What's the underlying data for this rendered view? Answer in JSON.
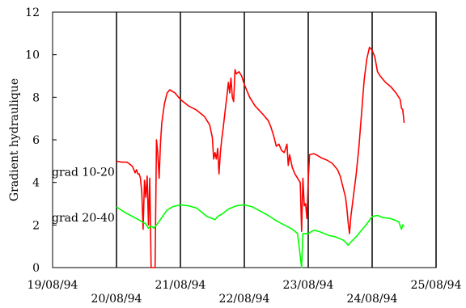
{
  "chart_data": {
    "type": "line",
    "title": "",
    "xlabel": "",
    "ylabel": "Gradient hydraulique",
    "xlim": [
      "19/08/94 00:00",
      "25/08/94 00:00"
    ],
    "ylim": [
      0,
      12
    ],
    "y_ticks": [
      0,
      2,
      4,
      6,
      8,
      10,
      12
    ],
    "x_ticks": [
      {
        "date": "19/08/94",
        "label": "19/08/94",
        "row": "upper"
      },
      {
        "date": "20/08/94",
        "label": "20/08/94",
        "row": "lower"
      },
      {
        "date": "21/08/94",
        "label": "21/08/94",
        "row": "upper"
      },
      {
        "date": "22/08/94",
        "label": "22/08/94",
        "row": "lower"
      },
      {
        "date": "23/08/94",
        "label": "23/08/94",
        "row": "upper"
      },
      {
        "date": "24/08/94",
        "label": "24/08/94",
        "row": "lower"
      },
      {
        "date": "25/08/94",
        "label": "25/08/94",
        "row": "upper"
      }
    ],
    "vertical_lines": [
      "20/08/94 00:00",
      "21/08/94 00:00",
      "22/08/94 00:00",
      "23/08/94 00:00",
      "24/08/94 00:00",
      "25/08/94 00:00"
    ],
    "grid": false,
    "series": [
      {
        "name": "grad 10-20",
        "color": "#ff0000",
        "points": [
          [
            "20/08/94 00:00",
            5.0
          ],
          [
            "20/08/94 02:00",
            4.95
          ],
          [
            "20/08/94 04:00",
            4.95
          ],
          [
            "20/08/94 05:00",
            4.85
          ],
          [
            "20/08/94 06:00",
            4.75
          ],
          [
            "20/08/94 07:00",
            4.45
          ],
          [
            "20/08/94 07:30",
            4.6
          ],
          [
            "20/08/94 08:00",
            4.4
          ],
          [
            "20/08/94 08:30",
            4.4
          ],
          [
            "20/08/94 09:00",
            4.2
          ],
          [
            "20/08/94 09:30",
            3.5
          ],
          [
            "20/08/94 10:00",
            1.8
          ],
          [
            "20/08/94 10:30",
            4.1
          ],
          [
            "20/08/94 11:00",
            3.3
          ],
          [
            "20/08/94 11:30",
            4.3
          ],
          [
            "20/08/94 12:00",
            2.0
          ],
          [
            "20/08/94 12:30",
            4.2
          ],
          [
            "20/08/94 13:00",
            0.0
          ],
          [
            "20/08/94 14:00",
            0.0
          ],
          [
            "20/08/94 14:30",
            0.0
          ],
          [
            "20/08/94 15:00",
            6.0
          ],
          [
            "20/08/94 15:30",
            5.4
          ],
          [
            "20/08/94 16:00",
            4.2
          ],
          [
            "20/08/94 16:30",
            5.8
          ],
          [
            "20/08/94 17:00",
            6.8
          ],
          [
            "20/08/94 18:00",
            7.7
          ],
          [
            "20/08/94 19:00",
            8.2
          ],
          [
            "20/08/94 20:00",
            8.35
          ],
          [
            "20/08/94 22:00",
            8.2
          ],
          [
            "21/08/94 00:00",
            7.9
          ],
          [
            "21/08/94 03:00",
            7.6
          ],
          [
            "21/08/94 06:00",
            7.4
          ],
          [
            "21/08/94 09:00",
            7.1
          ],
          [
            "21/08/94 11:00",
            6.7
          ],
          [
            "21/08/94 12:00",
            6.1
          ],
          [
            "21/08/94 12:30",
            5.1
          ],
          [
            "21/08/94 13:00",
            5.4
          ],
          [
            "21/08/94 13:30",
            5.1
          ],
          [
            "21/08/94 14:00",
            5.6
          ],
          [
            "21/08/94 14:30",
            4.4
          ],
          [
            "21/08/94 15:00",
            5.4
          ],
          [
            "21/08/94 15:30",
            6.0
          ],
          [
            "21/08/94 16:00",
            6.5
          ],
          [
            "21/08/94 17:00",
            7.6
          ],
          [
            "21/08/94 17:30",
            8.1
          ],
          [
            "21/08/94 18:00",
            8.7
          ],
          [
            "21/08/94 18:30",
            8.2
          ],
          [
            "21/08/94 19:00",
            8.9
          ],
          [
            "21/08/94 19:30",
            8.0
          ],
          [
            "21/08/94 20:00",
            7.8
          ],
          [
            "21/08/94 20:30",
            9.3
          ],
          [
            "21/08/94 21:00",
            9.1
          ],
          [
            "21/08/94 22:00",
            9.2
          ],
          [
            "21/08/94 23:00",
            9.0
          ],
          [
            "22/08/94 00:00",
            8.6
          ],
          [
            "22/08/94 02:00",
            8.0
          ],
          [
            "22/08/94 04:00",
            7.6
          ],
          [
            "22/08/94 07:00",
            7.2
          ],
          [
            "22/08/94 09:00",
            6.9
          ],
          [
            "22/08/94 10:00",
            6.6
          ],
          [
            "22/08/94 11:00",
            6.2
          ],
          [
            "22/08/94 12:00",
            5.7
          ],
          [
            "22/08/94 13:00",
            5.8
          ],
          [
            "22/08/94 14:00",
            5.5
          ],
          [
            "22/08/94 15:00",
            5.4
          ],
          [
            "22/08/94 16:00",
            5.8
          ],
          [
            "22/08/94 16:30",
            4.8
          ],
          [
            "22/08/94 17:00",
            5.3
          ],
          [
            "22/08/94 18:00",
            4.7
          ],
          [
            "22/08/94 19:00",
            4.4
          ],
          [
            "22/08/94 20:00",
            4.2
          ],
          [
            "22/08/94 21:00",
            4.0
          ],
          [
            "22/08/94 21:30",
            1.7
          ],
          [
            "22/08/94 22:00",
            4.2
          ],
          [
            "22/08/94 22:30",
            2.9
          ],
          [
            "22/08/94 23:00",
            3.0
          ],
          [
            "22/08/94 23:30",
            2.3
          ],
          [
            "23/08/94 00:00",
            4.1
          ],
          [
            "23/08/94 00:30",
            5.3
          ],
          [
            "23/08/94 02:00",
            5.35
          ],
          [
            "23/08/94 03:00",
            5.3
          ],
          [
            "23/08/94 05:00",
            5.15
          ],
          [
            "23/08/94 07:00",
            5.05
          ],
          [
            "23/08/94 09:00",
            4.9
          ],
          [
            "23/08/94 11:00",
            4.6
          ],
          [
            "23/08/94 12:00",
            4.3
          ],
          [
            "23/08/94 13:00",
            3.8
          ],
          [
            "23/08/94 14:00",
            3.3
          ],
          [
            "23/08/94 14:30",
            2.8
          ],
          [
            "23/08/94 15:00",
            2.1
          ],
          [
            "23/08/94 15:30",
            1.6
          ],
          [
            "23/08/94 16:00",
            2.4
          ],
          [
            "23/08/94 17:00",
            3.4
          ],
          [
            "23/08/94 18:00",
            4.4
          ],
          [
            "23/08/94 19:00",
            5.6
          ],
          [
            "23/08/94 20:00",
            7.2
          ],
          [
            "23/08/94 21:00",
            8.8
          ],
          [
            "23/08/94 22:00",
            9.8
          ],
          [
            "23/08/94 23:00",
            10.35
          ],
          [
            "24/08/94 00:00",
            10.2
          ],
          [
            "24/08/94 01:00",
            9.9
          ],
          [
            "24/08/94 02:00",
            9.2
          ],
          [
            "24/08/94 03:00",
            9.0
          ],
          [
            "24/08/94 05:00",
            8.7
          ],
          [
            "24/08/94 07:00",
            8.5
          ],
          [
            "24/08/94 09:00",
            8.2
          ],
          [
            "24/08/94 10:30",
            7.9
          ],
          [
            "24/08/94 11:00",
            7.5
          ],
          [
            "24/08/94 11:30",
            7.4
          ],
          [
            "24/08/94 12:00",
            6.8
          ]
        ]
      },
      {
        "name": "grad 20-40",
        "color": "#00ff00",
        "points": [
          [
            "20/08/94 00:00",
            2.85
          ],
          [
            "20/08/94 03:00",
            2.6
          ],
          [
            "20/08/94 06:00",
            2.4
          ],
          [
            "20/08/94 09:00",
            2.2
          ],
          [
            "20/08/94 11:00",
            2.05
          ],
          [
            "20/08/94 12:00",
            1.85
          ],
          [
            "20/08/94 13:00",
            1.95
          ],
          [
            "20/08/94 14:00",
            1.85
          ],
          [
            "20/08/94 15:00",
            2.0
          ],
          [
            "20/08/94 17:00",
            2.35
          ],
          [
            "20/08/94 19:00",
            2.7
          ],
          [
            "20/08/94 21:00",
            2.85
          ],
          [
            "21/08/94 00:00",
            2.95
          ],
          [
            "21/08/94 03:00",
            2.9
          ],
          [
            "21/08/94 06:00",
            2.8
          ],
          [
            "21/08/94 08:00",
            2.6
          ],
          [
            "21/08/94 10:00",
            2.4
          ],
          [
            "21/08/94 12:00",
            2.3
          ],
          [
            "21/08/94 13:00",
            2.25
          ],
          [
            "21/08/94 14:00",
            2.4
          ],
          [
            "21/08/94 16:00",
            2.55
          ],
          [
            "21/08/94 18:00",
            2.75
          ],
          [
            "21/08/94 21:00",
            2.9
          ],
          [
            "22/08/94 00:00",
            2.95
          ],
          [
            "22/08/94 03:00",
            2.85
          ],
          [
            "22/08/94 06:00",
            2.65
          ],
          [
            "22/08/94 09:00",
            2.45
          ],
          [
            "22/08/94 12:00",
            2.2
          ],
          [
            "22/08/94 15:00",
            2.0
          ],
          [
            "22/08/94 18:00",
            1.8
          ],
          [
            "22/08/94 20:00",
            1.6
          ],
          [
            "22/08/94 21:30",
            0.0
          ],
          [
            "22/08/94 22:00",
            1.6
          ],
          [
            "23/08/94 00:00",
            1.6
          ],
          [
            "23/08/94 02:00",
            1.75
          ],
          [
            "23/08/94 04:00",
            1.7
          ],
          [
            "23/08/94 06:00",
            1.6
          ],
          [
            "23/08/94 08:00",
            1.5
          ],
          [
            "23/08/94 10:00",
            1.45
          ],
          [
            "23/08/94 12:00",
            1.35
          ],
          [
            "23/08/94 13:00",
            1.3
          ],
          [
            "23/08/94 14:00",
            1.2
          ],
          [
            "23/08/94 15:00",
            1.05
          ],
          [
            "23/08/94 16:00",
            1.2
          ],
          [
            "23/08/94 18:00",
            1.45
          ],
          [
            "23/08/94 20:00",
            1.75
          ],
          [
            "23/08/94 22:00",
            2.05
          ],
          [
            "24/08/94 00:00",
            2.4
          ],
          [
            "24/08/94 02:00",
            2.45
          ],
          [
            "24/08/94 04:00",
            2.35
          ],
          [
            "24/08/94 07:00",
            2.3
          ],
          [
            "24/08/94 10:00",
            2.15
          ],
          [
            "24/08/94 11:00",
            1.8
          ],
          [
            "24/08/94 11:30",
            2.0
          ],
          [
            "24/08/94 12:00",
            1.95
          ]
        ]
      }
    ]
  }
}
